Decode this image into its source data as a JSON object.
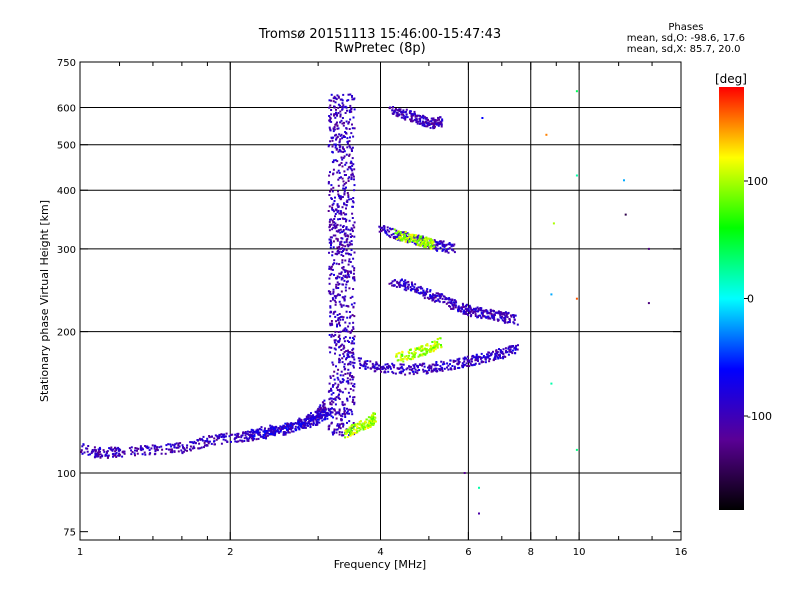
{
  "title": "Tromsø 20151113 15:46:00-15:47:43",
  "subtitle": "RwPretec (8p)",
  "stats": {
    "heading": "Phases",
    "line_o": "mean, sd,O: -98.6, 17.6",
    "line_x": "mean, sd,X:  85.7, 20.0"
  },
  "chart_data": {
    "type": "scatter",
    "xlabel": "Frequency [MHz]",
    "ylabel": "Stationary phase Virtual Height [km]",
    "xscale": "log",
    "yscale": "log",
    "xlim": [
      1,
      16
    ],
    "ylim": [
      72,
      750
    ],
    "xticks": [
      1,
      2,
      4,
      6,
      8,
      10,
      16
    ],
    "xtick_labels": [
      "1",
      "2",
      "4",
      "6",
      "8",
      "10",
      "16"
    ],
    "x_minor_ticks": [
      1.2,
      1.4,
      1.6,
      1.8,
      3,
      5,
      7,
      9,
      12,
      14
    ],
    "yticks": [
      75,
      100,
      200,
      300,
      400,
      500,
      600,
      750
    ],
    "ytick_labels": [
      "75",
      "100",
      "200",
      "300",
      "400",
      "500",
      "600",
      "750"
    ],
    "grid_x": [
      2,
      4,
      6,
      8,
      10
    ],
    "grid_y": [
      100,
      200,
      300,
      400,
      500,
      600
    ],
    "colorbar": {
      "label": "[deg]",
      "range": [
        -180,
        180
      ],
      "ticks": [
        100,
        0,
        -100
      ],
      "tick_labels": [
        "100",
        "0",
        "-100"
      ],
      "colors": [
        "#000000",
        "#5a0096",
        "#0000ff",
        "#00ffff",
        "#00ff00",
        "#ffff00",
        "#ff0000"
      ]
    },
    "traces": [
      {
        "name": "",
        "phase": -100,
        "freq": [
          1.0,
          1.1,
          1.2,
          1.4,
          1.6,
          1.8,
          2.0,
          2.2,
          2.4,
          2.6,
          2.8,
          3.0,
          3.1
        ],
        "height": [
          113,
          110,
          111,
          112,
          113,
          117,
          119,
          120,
          122,
          124,
          128,
          133,
          140
        ]
      },
      {
        "name": "",
        "phase": -80,
        "freq": [
          2.2,
          2.5,
          2.8,
          3.0,
          3.2
        ],
        "height": [
          121,
          124,
          127,
          130,
          135
        ]
      },
      {
        "name": "",
        "phase": -100,
        "freq_range": [
          3.15,
          3.55
        ],
        "height_range": [
          120,
          640
        ]
      },
      {
        "name": "",
        "phase": 100,
        "freq": [
          3.4,
          3.6,
          3.8,
          3.9
        ],
        "height": [
          122,
          125,
          128,
          132
        ]
      },
      {
        "name": "",
        "phase": -95,
        "freq": [
          3.6,
          4.0,
          4.5,
          5.0,
          5.5,
          6.0,
          6.5,
          7.0,
          7.5
        ],
        "height": [
          172,
          168,
          166,
          167,
          170,
          173,
          176,
          180,
          183
        ]
      },
      {
        "name": "",
        "phase": 100,
        "freq": [
          4.3,
          4.7,
          5.0,
          5.3
        ],
        "height": [
          176,
          180,
          184,
          190
        ]
      },
      {
        "name": "",
        "phase": -95,
        "freq": [
          4.0,
          4.4,
          4.8,
          5.2,
          5.6
        ],
        "height": [
          330,
          320,
          312,
          305,
          300
        ]
      },
      {
        "name": "",
        "phase": 100,
        "freq": [
          4.3,
          4.6,
          4.9,
          5.1
        ],
        "height": [
          322,
          316,
          310,
          306
        ]
      },
      {
        "name": "",
        "phase": -100,
        "freq": [
          4.2,
          4.5,
          4.8,
          5.1,
          5.3
        ],
        "height": [
          590,
          580,
          565,
          555,
          560
        ]
      },
      {
        "name": "",
        "phase": -95,
        "freq": [
          4.2,
          4.6,
          5.0,
          5.4,
          5.8,
          6.2,
          6.6,
          7.0,
          7.5
        ],
        "height": [
          255,
          250,
          240,
          232,
          225,
          220,
          218,
          215,
          212
        ]
      }
    ],
    "isolated_points": [
      {
        "x": 6.3,
        "y": 93,
        "phase": 20
      },
      {
        "x": 6.3,
        "y": 82,
        "phase": -110
      },
      {
        "x": 5.9,
        "y": 100,
        "phase": -120
      },
      {
        "x": 8.6,
        "y": 525,
        "phase": 150
      },
      {
        "x": 9.9,
        "y": 650,
        "phase": 40
      },
      {
        "x": 9.9,
        "y": 430,
        "phase": 20
      },
      {
        "x": 9.9,
        "y": 235,
        "phase": 160
      },
      {
        "x": 9.9,
        "y": 112,
        "phase": 30
      },
      {
        "x": 8.9,
        "y": 340,
        "phase": 100
      },
      {
        "x": 8.8,
        "y": 240,
        "phase": -20
      },
      {
        "x": 8.8,
        "y": 155,
        "phase": 20
      },
      {
        "x": 12.3,
        "y": 420,
        "phase": -20
      },
      {
        "x": 12.4,
        "y": 355,
        "phase": -150
      },
      {
        "x": 13.8,
        "y": 300,
        "phase": -130
      },
      {
        "x": 13.8,
        "y": 230,
        "phase": -130
      },
      {
        "x": 6.4,
        "y": 570,
        "phase": -60
      }
    ]
  }
}
